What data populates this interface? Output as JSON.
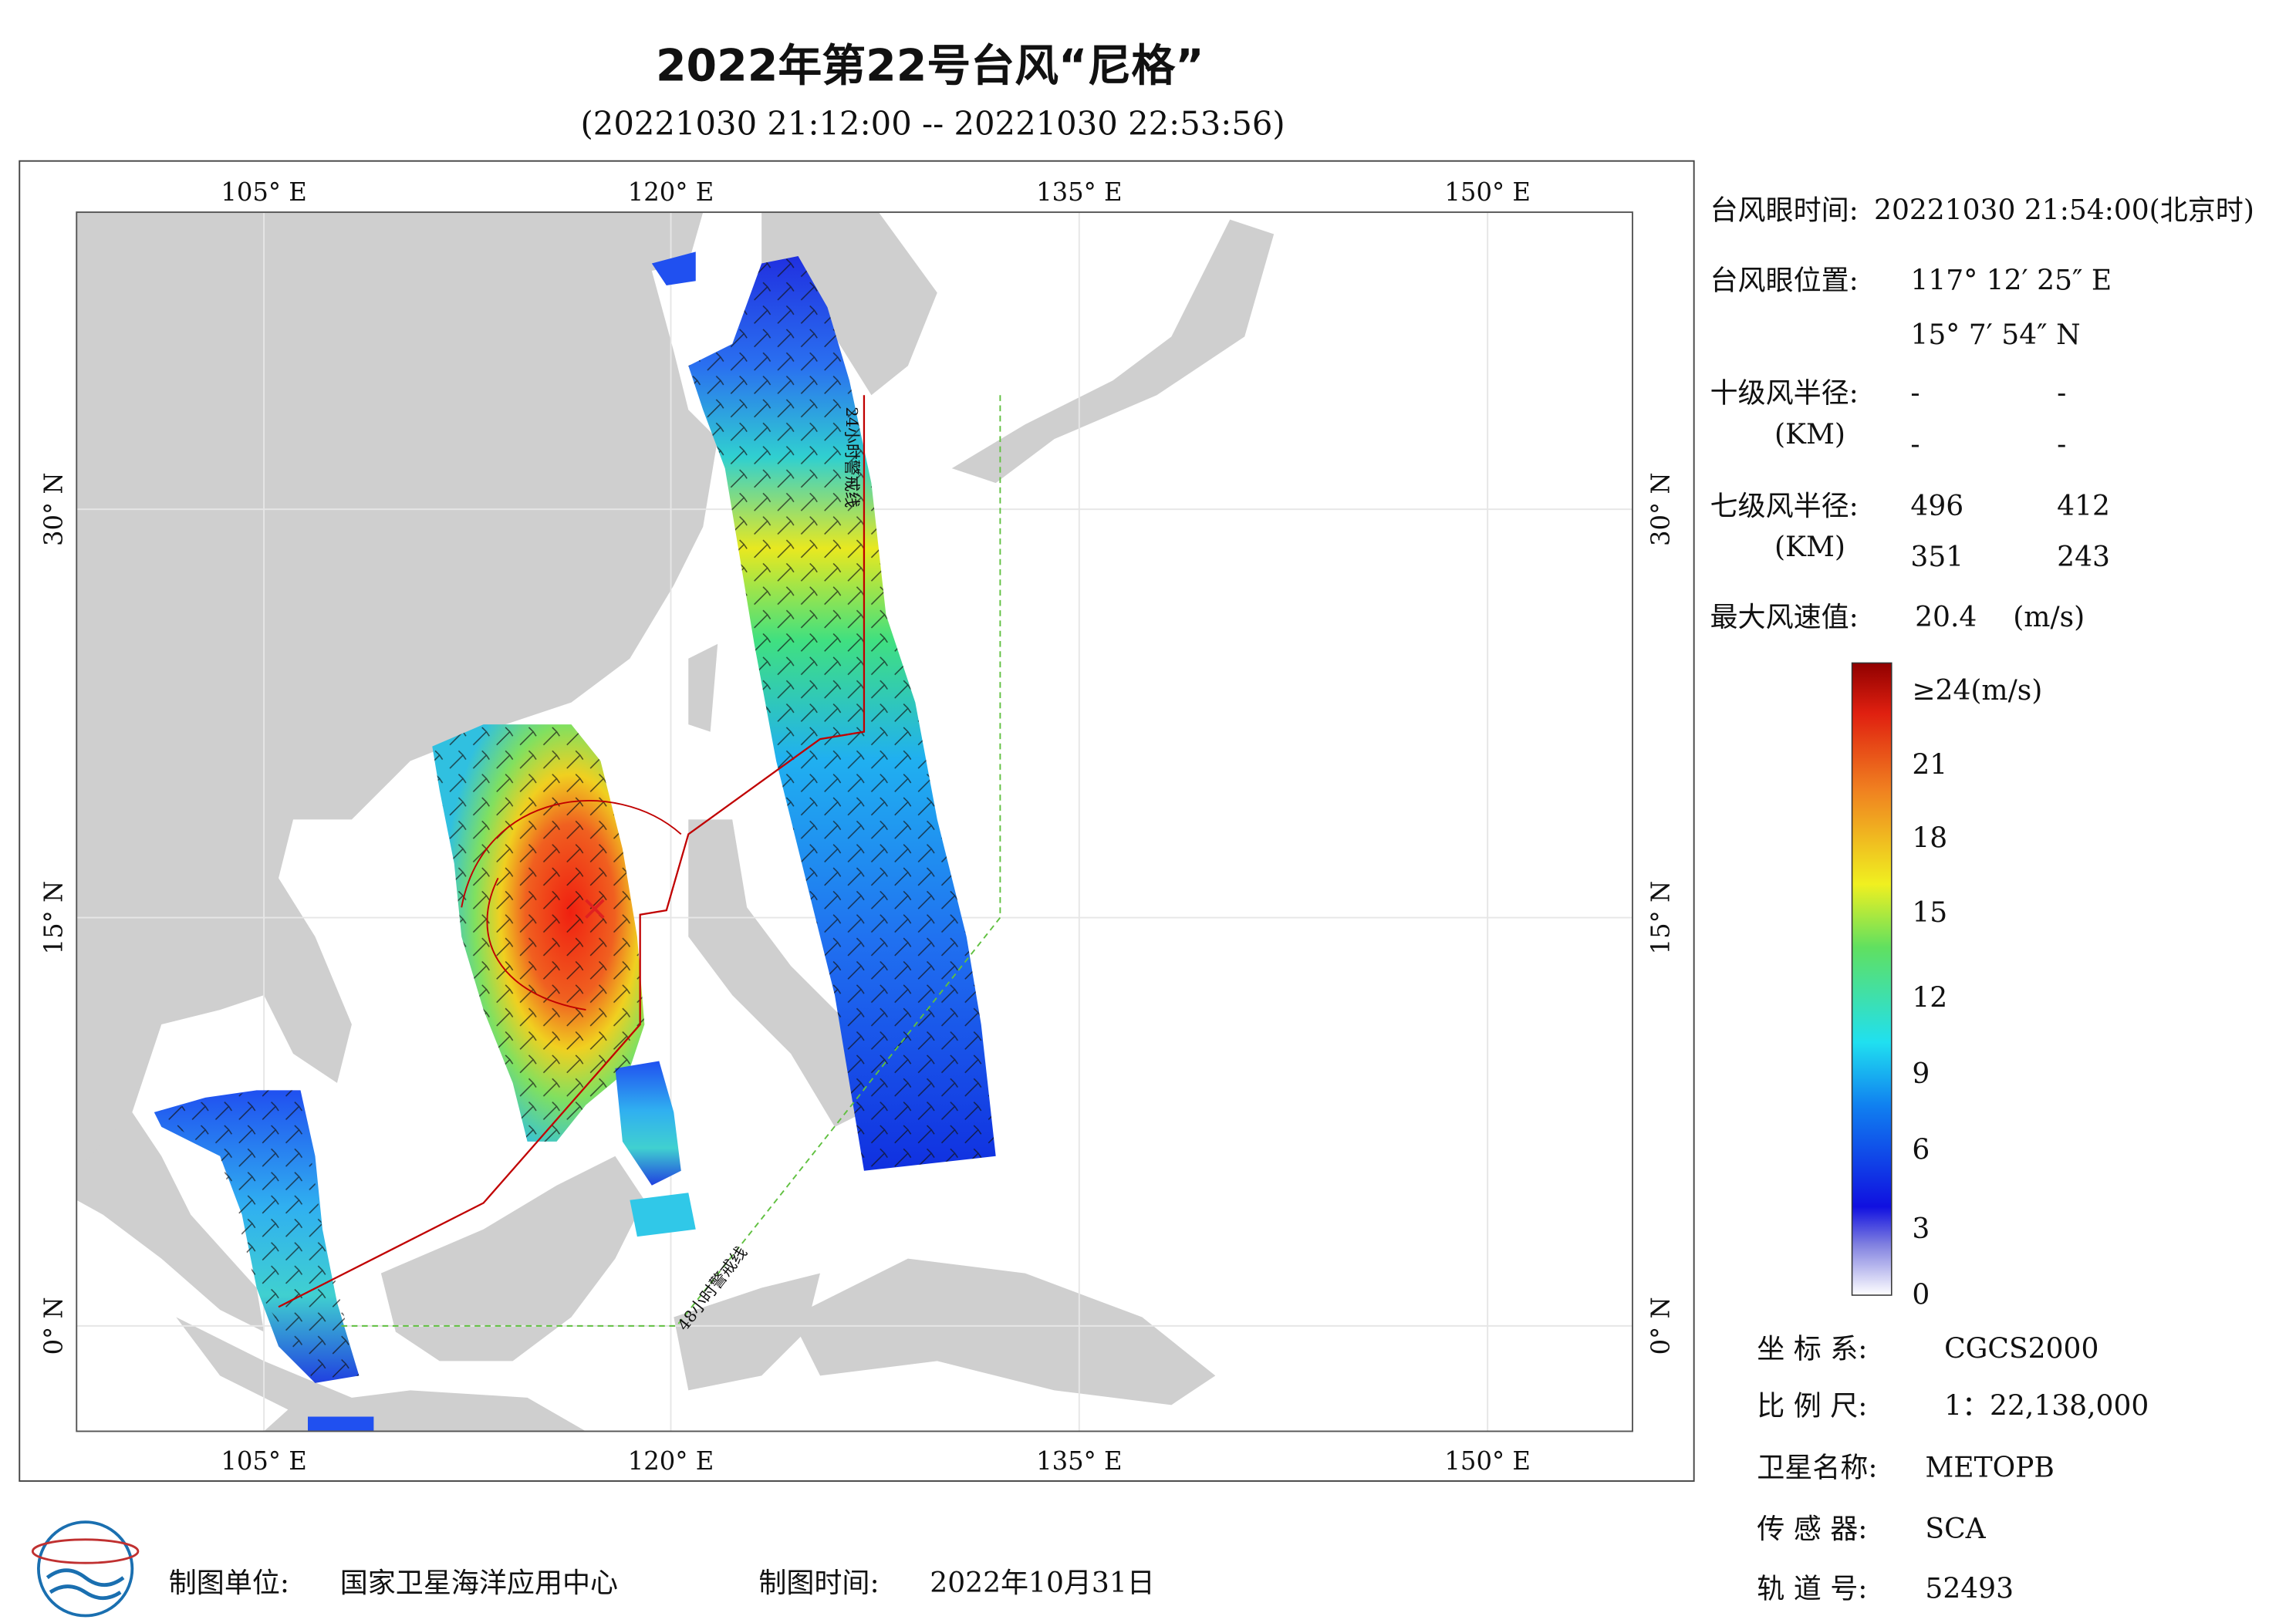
{
  "header": {
    "title": "2022年第22号台风“尼格”",
    "subtitle": "(20221030 21:12:00 -- 20221030 22:53:56)"
  },
  "map": {
    "lon_labels": [
      "105° E",
      "120° E",
      "135° E",
      "150° E"
    ],
    "lat_labels": [
      "30° N",
      "15° N",
      "0° N"
    ],
    "warning_24h": "24小时警戒线",
    "warning_48h": "48小时警戒线"
  },
  "info": {
    "eye_time_label": "台风眼时间:",
    "eye_time": "20221030 21:54:00(北京时)",
    "eye_pos_label": "台风眼位置:",
    "eye_lon": "117° 12′ 25″ E",
    "eye_lat": "15° 7′ 54″ N",
    "r10_label": "十级风半径:",
    "r10": [
      "-",
      "-",
      "-",
      "-"
    ],
    "r7_label": "七级风半径:",
    "r7": [
      496,
      412,
      351,
      243
    ],
    "unit_label": "(KM)",
    "max_label": "最大风速值:",
    "max_wind": 20.4,
    "max_unit": "(m/s)"
  },
  "colorbar": {
    "labels": [
      "≥24(m/s)",
      "21",
      "18",
      "15",
      "12",
      "9",
      "6",
      "3",
      "0"
    ]
  },
  "meta": {
    "coord_label": "坐 标 系:",
    "coord": "CGCS2000",
    "scale_label": "比 例 尺:",
    "scale": "1：22,138,000",
    "sat_label": "卫星名称:",
    "sat": "METOPB",
    "sensor_label": "传 感 器:",
    "sensor": "SCA",
    "orbit_label": "轨 道 号:",
    "orbit": 52493
  },
  "footer": {
    "maker_label": "制图单位:",
    "maker": "国家卫星海洋应用中心",
    "date_label": "制图时间:",
    "date": "2022年10月31日"
  }
}
